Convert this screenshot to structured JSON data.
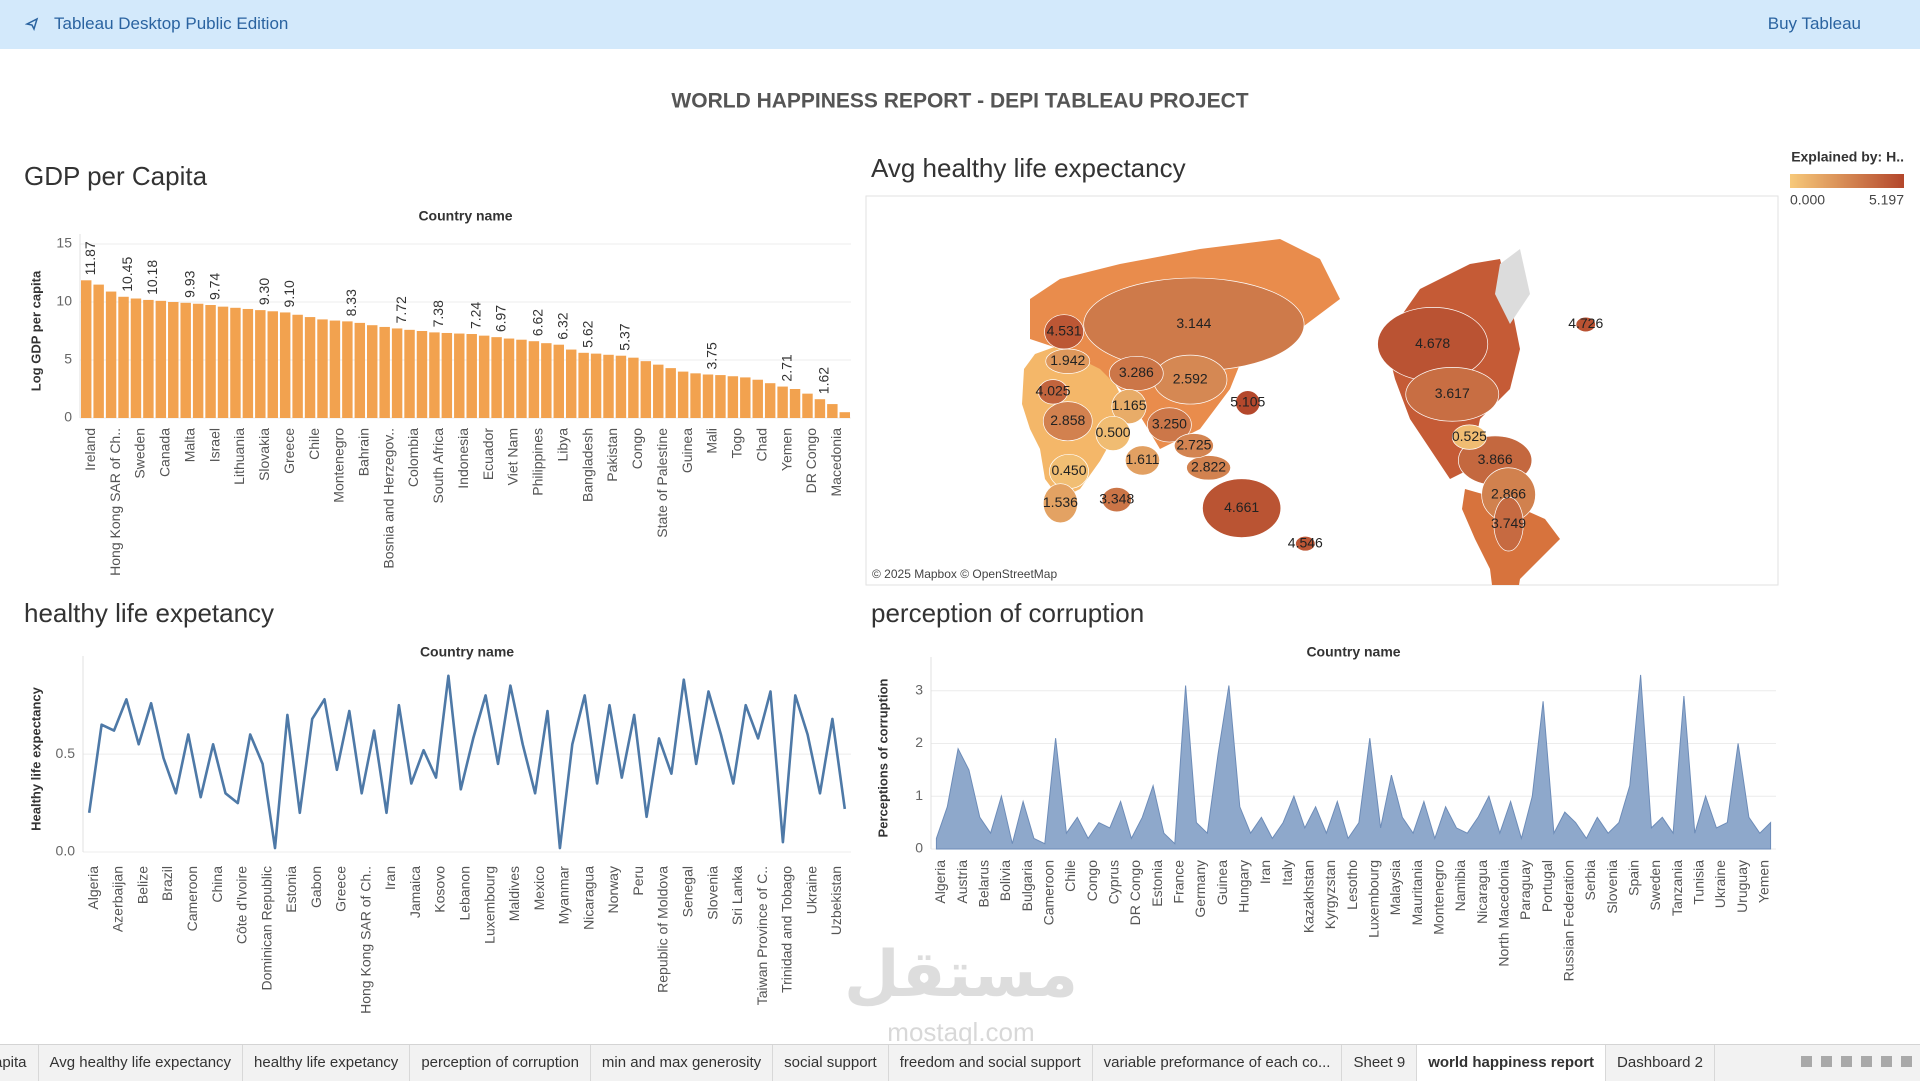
{
  "header": {
    "app_name": "Tableau Desktop Public Edition",
    "buy_link": "Buy Tableau"
  },
  "dashboard_title": "WORLD HAPPINESS REPORT - DEPI TABLEAU PROJECT",
  "chart_data": [
    {
      "type": "bar",
      "title": "GDP per Capita",
      "x_axis_title": "Country name",
      "y_axis_title": "Log GDP per capita",
      "categories": [
        "Ireland",
        null,
        "Hong Kong SAR of Ch..",
        null,
        "Sweden",
        null,
        "Canada",
        null,
        "Malta",
        null,
        "Israel",
        null,
        "Lithuania",
        null,
        "Slovakia",
        null,
        "Greece",
        null,
        "Chile",
        null,
        "Montenegro",
        null,
        "Bahrain",
        null,
        "Bosnia and Herzegov..",
        null,
        "Colombia",
        null,
        "South Africa",
        null,
        "Indonesia",
        null,
        "Ecuador",
        null,
        "Viet Nam",
        null,
        "Philippines",
        null,
        "Libya",
        null,
        "Bangladesh",
        null,
        "Pakistan",
        null,
        "Congo",
        null,
        "State of Palestine",
        null,
        "Guinea",
        null,
        "Mali",
        null,
        "Togo",
        null,
        "Chad",
        null,
        "Yemen",
        null,
        "DR Congo",
        null,
        "Macedonia",
        null
      ],
      "values": [
        11.87,
        11.5,
        10.9,
        10.45,
        10.3,
        10.18,
        10.1,
        10.0,
        9.93,
        9.85,
        9.74,
        9.6,
        9.5,
        9.4,
        9.3,
        9.2,
        9.1,
        8.9,
        8.7,
        8.5,
        8.4,
        8.33,
        8.2,
        8.0,
        7.85,
        7.72,
        7.6,
        7.5,
        7.38,
        7.33,
        7.28,
        7.24,
        7.1,
        6.97,
        6.85,
        6.75,
        6.62,
        6.45,
        6.32,
        5.9,
        5.62,
        5.55,
        5.45,
        5.37,
        5.2,
        4.9,
        4.6,
        4.3,
        4.0,
        3.85,
        3.75,
        3.7,
        3.6,
        3.5,
        3.3,
        3.0,
        2.71,
        2.5,
        2.1,
        1.62,
        1.2,
        0.5
      ],
      "value_labels": [
        "11.87",
        null,
        null,
        "10.45",
        null,
        "10.18",
        null,
        null,
        "9.93",
        null,
        "9.74",
        null,
        null,
        null,
        "9.30",
        null,
        "9.10",
        null,
        null,
        null,
        null,
        "8.33",
        null,
        null,
        null,
        "7.72",
        null,
        null,
        "7.38",
        null,
        null,
        "7.24",
        null,
        "6.97",
        null,
        null,
        "6.62",
        null,
        "6.32",
        null,
        "5.62",
        null,
        null,
        "5.37",
        null,
        null,
        null,
        null,
        null,
        null,
        "3.75",
        null,
        null,
        null,
        null,
        null,
        "2.71",
        null,
        null,
        "1.62",
        null,
        null
      ],
      "color": "#f2a24f",
      "ylim": [
        0,
        15
      ],
      "yticks": [
        0,
        5,
        10,
        15
      ],
      "grid": true
    },
    {
      "type": "map",
      "title": "Avg healthy life expectancy",
      "legend_title": "Explained by: H..",
      "color_range": [
        {
          "value": 0,
          "label": "0.000"
        },
        {
          "value": 5.197,
          "label": "5.197"
        }
      ],
      "colors": [
        "#f7c97a",
        "#b3462b"
      ],
      "attribution": "© 2025 Mapbox © OpenStreetMap",
      "regions": [
        {
          "value": 3.144,
          "label": "3.144"
        },
        {
          "value": 4.531,
          "label": "4.531"
        },
        {
          "value": 1.942,
          "label": "1.942"
        },
        {
          "value": 3.286,
          "label": "3.286"
        },
        {
          "value": 2.592,
          "label": "2.592"
        },
        {
          "value": 4.025,
          "label": "4.025"
        },
        {
          "value": 1.165,
          "label": "1.165"
        },
        {
          "value": 5.105,
          "label": "5.105"
        },
        {
          "value": 2.858,
          "label": "2.858"
        },
        {
          "value": 0.5,
          "label": "0.500"
        },
        {
          "value": 3.25,
          "label": "3.250"
        },
        {
          "value": 1.611,
          "label": "1.611"
        },
        {
          "value": 2.725,
          "label": "2.725"
        },
        {
          "value": 2.822,
          "label": "2.822"
        },
        {
          "value": 0.45,
          "label": "0.450"
        },
        {
          "value": 1.536,
          "label": "1.536"
        },
        {
          "value": 3.348,
          "label": "3.348"
        },
        {
          "value": 4.661,
          "label": "4.661"
        },
        {
          "value": 4.546,
          "label": "4.546"
        },
        {
          "value": 4.678,
          "label": "4.678"
        },
        {
          "value": 3.617,
          "label": "3.617"
        },
        {
          "value": 0.525,
          "label": "0.525"
        },
        {
          "value": 3.866,
          "label": "3.866"
        },
        {
          "value": 2.866,
          "label": "2.866"
        },
        {
          "value": 3.749,
          "label": "3.749"
        },
        {
          "value": 4.726,
          "label": "4.726"
        }
      ]
    },
    {
      "type": "line",
      "title": "healthy life expetancy",
      "x_axis_title": "Country name",
      "y_axis_title": "Healthy life expectancy",
      "categories": [
        "Algeria",
        null,
        "Azerbaijan",
        null,
        "Belize",
        null,
        "Brazil",
        null,
        "Cameroon",
        null,
        "China",
        null,
        "Côte d'Ivoire",
        null,
        "Dominican Republic",
        null,
        "Estonia",
        null,
        "Gabon",
        null,
        "Greece",
        null,
        "Hong Kong SAR of Ch..",
        null,
        "Iran",
        null,
        "Jamaica",
        null,
        "Kosovo",
        null,
        "Lebanon",
        null,
        "Luxembourg",
        null,
        "Maldives",
        null,
        "Mexico",
        null,
        "Myanmar",
        null,
        "Nicaragua",
        null,
        "Norway",
        null,
        "Peru",
        null,
        "Republic of Moldova",
        null,
        "Senegal",
        null,
        "Slovenia",
        null,
        "Sri Lanka",
        null,
        "Taiwan Province of C..",
        null,
        "Trinidad and Tobago",
        null,
        "Ukraine",
        null,
        "Uzbekistan",
        null
      ],
      "values": [
        0.2,
        0.65,
        0.62,
        0.78,
        0.55,
        0.76,
        0.48,
        0.3,
        0.6,
        0.28,
        0.55,
        0.3,
        0.25,
        0.6,
        0.45,
        0.02,
        0.7,
        0.2,
        0.68,
        0.78,
        0.42,
        0.72,
        0.3,
        0.62,
        0.2,
        0.75,
        0.35,
        0.52,
        0.38,
        0.9,
        0.32,
        0.58,
        0.8,
        0.45,
        0.85,
        0.55,
        0.3,
        0.72,
        0.02,
        0.55,
        0.8,
        0.35,
        0.75,
        0.38,
        0.7,
        0.18,
        0.58,
        0.4,
        0.88,
        0.45,
        0.82,
        0.6,
        0.35,
        0.75,
        0.58,
        0.82,
        0.05,
        0.8,
        0.6,
        0.3,
        0.68,
        0.22
      ],
      "color": "#4e79a7",
      "ylim": [
        0,
        0.95
      ],
      "yticks": [
        {
          "value": 0,
          "label": "0.0"
        },
        {
          "value": 0.5,
          "label": "0.5"
        }
      ],
      "grid": true
    },
    {
      "type": "area",
      "title": "perception of corruption",
      "x_axis_title": "Country name",
      "y_axis_title": "Perceptions of corruption",
      "categories": [
        "Algeria",
        null,
        "Austria",
        null,
        "Belarus",
        null,
        "Bolivia",
        null,
        "Bulgaria",
        null,
        "Cameroon",
        null,
        "Chile",
        null,
        "Congo",
        null,
        "Cyprus",
        null,
        "DR Congo",
        null,
        "Estonia",
        null,
        "France",
        null,
        "Germany",
        null,
        "Guinea",
        null,
        "Hungary",
        null,
        "Iran",
        null,
        "Italy",
        null,
        "Kazakhstan",
        null,
        "Kyrgyzstan",
        null,
        "Lesotho",
        null,
        "Luxembourg",
        null,
        "Malaysia",
        null,
        "Mauritania",
        null,
        "Montenegro",
        null,
        "Namibia",
        null,
        "Nicaragua",
        null,
        "North Macedonia",
        null,
        "Paraguay",
        null,
        "Portugal",
        null,
        "Russian Federation",
        null,
        "Serbia",
        null,
        "Slovenia",
        null,
        "Spain",
        null,
        "Sweden",
        null,
        "Tanzania",
        null,
        "Tunisia",
        null,
        "Ukraine",
        null,
        "Uruguay",
        null,
        "Yemen",
        null
      ],
      "values": [
        0.2,
        0.8,
        1.9,
        1.5,
        0.6,
        0.3,
        1.0,
        0.1,
        0.9,
        0.2,
        0.1,
        2.1,
        0.3,
        0.6,
        0.2,
        0.5,
        0.4,
        0.9,
        0.2,
        0.6,
        1.2,
        0.3,
        0.1,
        3.1,
        0.5,
        0.3,
        1.8,
        3.1,
        0.8,
        0.3,
        0.6,
        0.2,
        0.5,
        1.0,
        0.4,
        0.8,
        0.3,
        0.9,
        0.2,
        0.5,
        2.1,
        0.4,
        1.4,
        0.6,
        0.3,
        0.9,
        0.2,
        0.8,
        0.4,
        0.3,
        0.6,
        1.0,
        0.3,
        0.9,
        0.2,
        1.0,
        2.8,
        0.3,
        0.7,
        0.5,
        0.2,
        0.6,
        0.3,
        0.5,
        1.2,
        3.3,
        0.4,
        0.6,
        0.3,
        2.9,
        0.3,
        1.0,
        0.4,
        0.5,
        2.0,
        0.6,
        0.3,
        0.5
      ],
      "color": "#8ea8cb",
      "ylim": [
        0,
        3.45
      ],
      "yticks": [
        0,
        1,
        2,
        3
      ],
      "grid": true
    }
  ],
  "tabs": [
    {
      "label": "apita"
    },
    {
      "label": "Avg healthy life expectancy"
    },
    {
      "label": "healthy life expetancy"
    },
    {
      "label": "perception of corruption"
    },
    {
      "label": "min and max generosity"
    },
    {
      "label": "social support"
    },
    {
      "label": "freedom and social support"
    },
    {
      "label": "variable preformance of each co..."
    },
    {
      "label": "Sheet 9"
    },
    {
      "label": "world happiness report",
      "active": true
    },
    {
      "label": "Dashboard 2"
    }
  ],
  "watermark": {
    "arabic": "مستقل",
    "latin": "mostaql.com"
  }
}
